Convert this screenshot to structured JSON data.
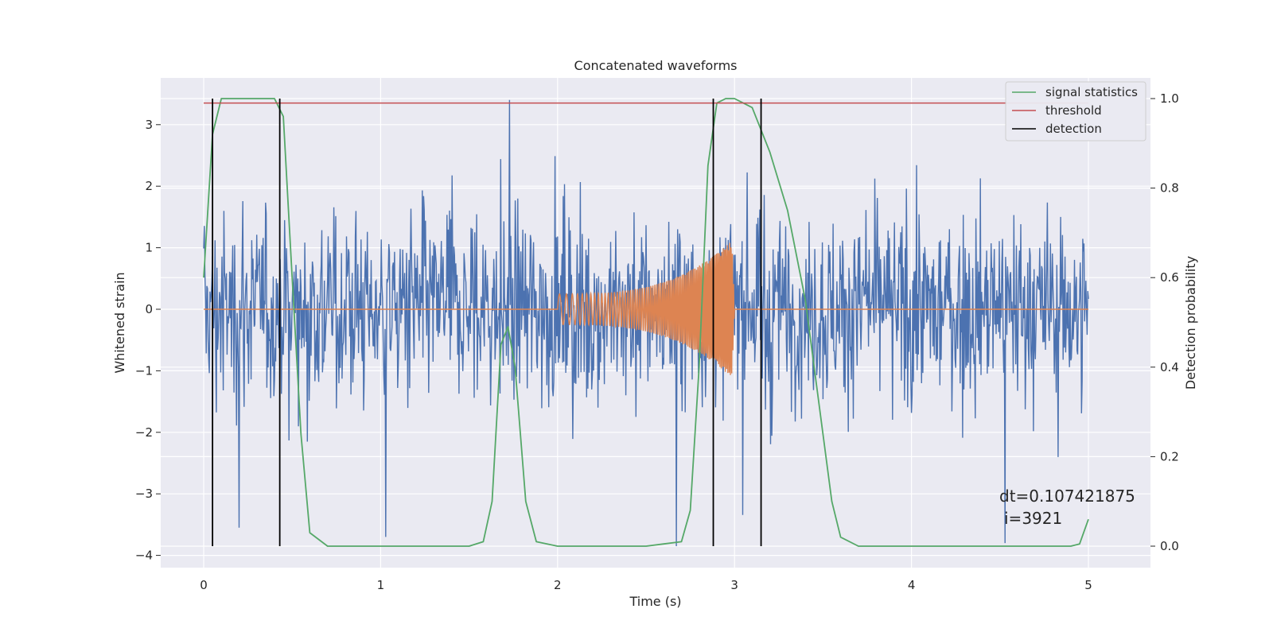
{
  "chart_data": {
    "type": "line",
    "title": "Concatenated waveforms",
    "xlabel": "Time (s)",
    "ylabel": "Whitened strain",
    "y2label": "Detection probability",
    "xlim": [
      -0.25,
      5.35
    ],
    "ylim": [
      -4.25,
      3.75
    ],
    "y2lim": [
      -0.045,
      1.03
    ],
    "xticks": [
      "0",
      "1",
      "2",
      "3",
      "4",
      "5"
    ],
    "yticks": [
      "−4",
      "−3",
      "−2",
      "−1",
      "0",
      "1",
      "2",
      "3"
    ],
    "y2ticks": [
      "0.0",
      "0.2",
      "0.4",
      "0.6",
      "0.8",
      "1.0"
    ],
    "grid": true,
    "legend_position": "top-right",
    "colors": {
      "strain": "#4c72b0",
      "injection": "#dd8452",
      "signal_statistics": "#55a868",
      "threshold": "#c44e52",
      "detection": "#000000",
      "axes_bg": "#eaeaf2",
      "grid": "#ffffff"
    },
    "series": [
      {
        "name": "signal statistics",
        "axis": "right",
        "x": [
          0.0,
          0.05,
          0.1,
          0.2,
          0.3,
          0.4,
          0.45,
          0.5,
          0.55,
          0.6,
          0.7,
          1.0,
          1.5,
          1.58,
          1.63,
          1.68,
          1.72,
          1.76,
          1.82,
          1.88,
          2.0,
          2.5,
          2.6,
          2.7,
          2.75,
          2.8,
          2.85,
          2.9,
          2.95,
          3.0,
          3.1,
          3.2,
          3.3,
          3.4,
          3.5,
          3.55,
          3.6,
          3.7,
          4.0,
          4.5,
          4.9,
          4.95,
          5.0
        ],
        "y": [
          0.6,
          0.92,
          1.0,
          1.0,
          1.0,
          1.0,
          0.96,
          0.6,
          0.25,
          0.03,
          0.0,
          0.0,
          0.0,
          0.01,
          0.1,
          0.45,
          0.49,
          0.4,
          0.1,
          0.01,
          0.0,
          0.0,
          0.005,
          0.01,
          0.08,
          0.4,
          0.85,
          0.99,
          1.0,
          1.0,
          0.98,
          0.88,
          0.75,
          0.55,
          0.25,
          0.1,
          0.02,
          0.0,
          0.0,
          0.0,
          0.0,
          0.005,
          0.06
        ]
      },
      {
        "name": "threshold",
        "axis": "right",
        "x": [
          0.0,
          5.0
        ],
        "y": [
          0.99,
          0.99
        ]
      },
      {
        "name": "detection",
        "axis": "right",
        "vlines": [
          0.05,
          0.43,
          2.88,
          3.15
        ],
        "y": [
          0.0,
          1.0
        ]
      }
    ],
    "strain_trace": {
      "x_range": [
        0.0,
        5.0
      ],
      "y_range": [
        -3.9,
        3.4
      ],
      "peaks": [
        {
          "x": 0.2,
          "y": -3.55
        },
        {
          "x": 1.03,
          "y": -3.7
        },
        {
          "x": 1.73,
          "y": 3.4
        },
        {
          "x": 2.67,
          "y": -3.85
        },
        {
          "x": 4.53,
          "y": -3.8
        }
      ]
    },
    "injection_trace": {
      "x_range": [
        2.0,
        3.0
      ],
      "amplitude_start": 0.25,
      "amplitude_end": 1.15
    },
    "annotations": [
      "dt=0.107421875",
      "i=3921"
    ]
  }
}
